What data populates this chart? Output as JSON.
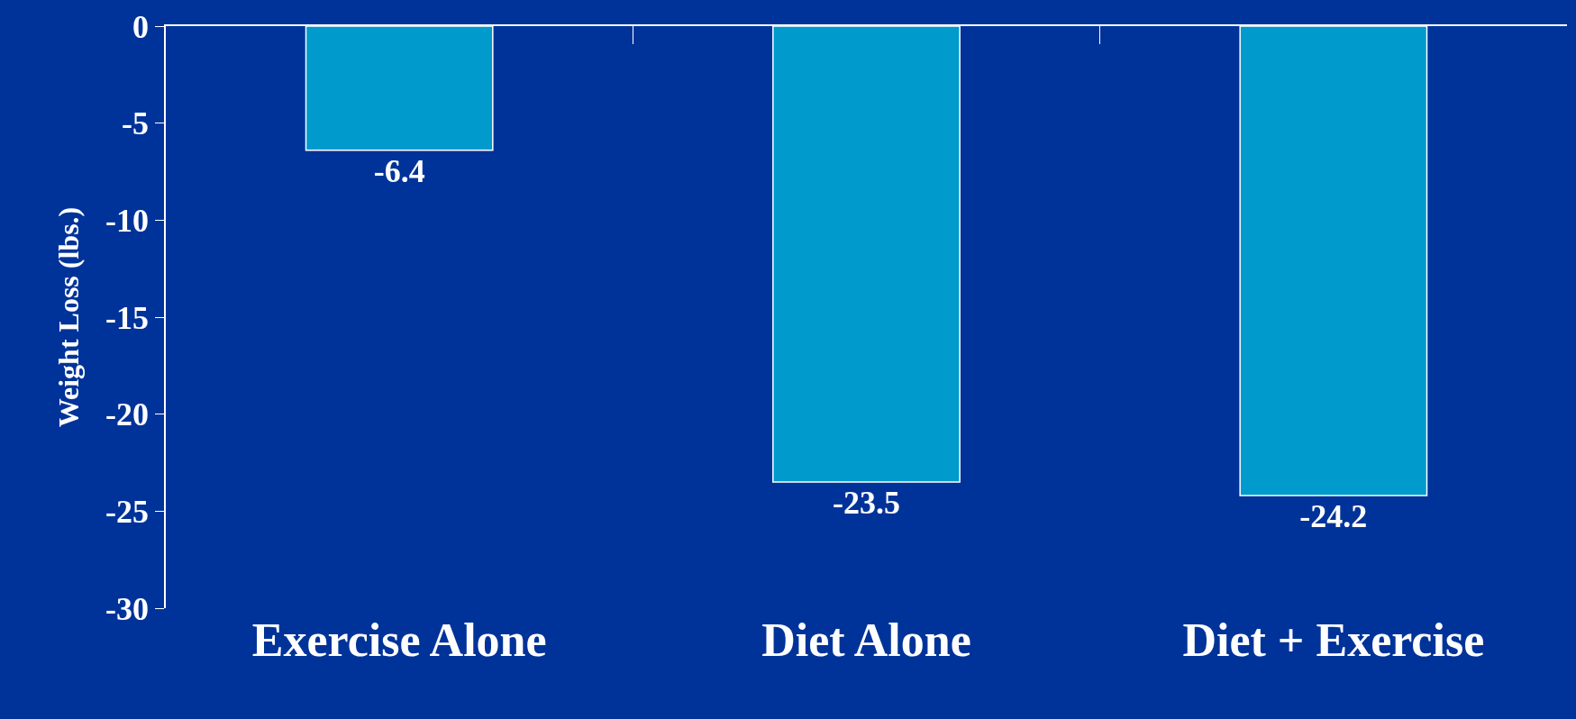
{
  "chart_data": {
    "type": "bar",
    "ylabel": "Weight Loss (lbs.)",
    "categories": [
      "Exercise Alone",
      "Diet Alone",
      "Diet + Exercise"
    ],
    "values": [
      -6.4,
      -23.5,
      -24.2
    ],
    "color": "#009acd",
    "ylim": [
      -30,
      0
    ],
    "yticks": [
      0,
      -5,
      -10,
      -15,
      -20,
      -25,
      -30
    ],
    "data_labels": true,
    "grid": false,
    "legend": false
  }
}
